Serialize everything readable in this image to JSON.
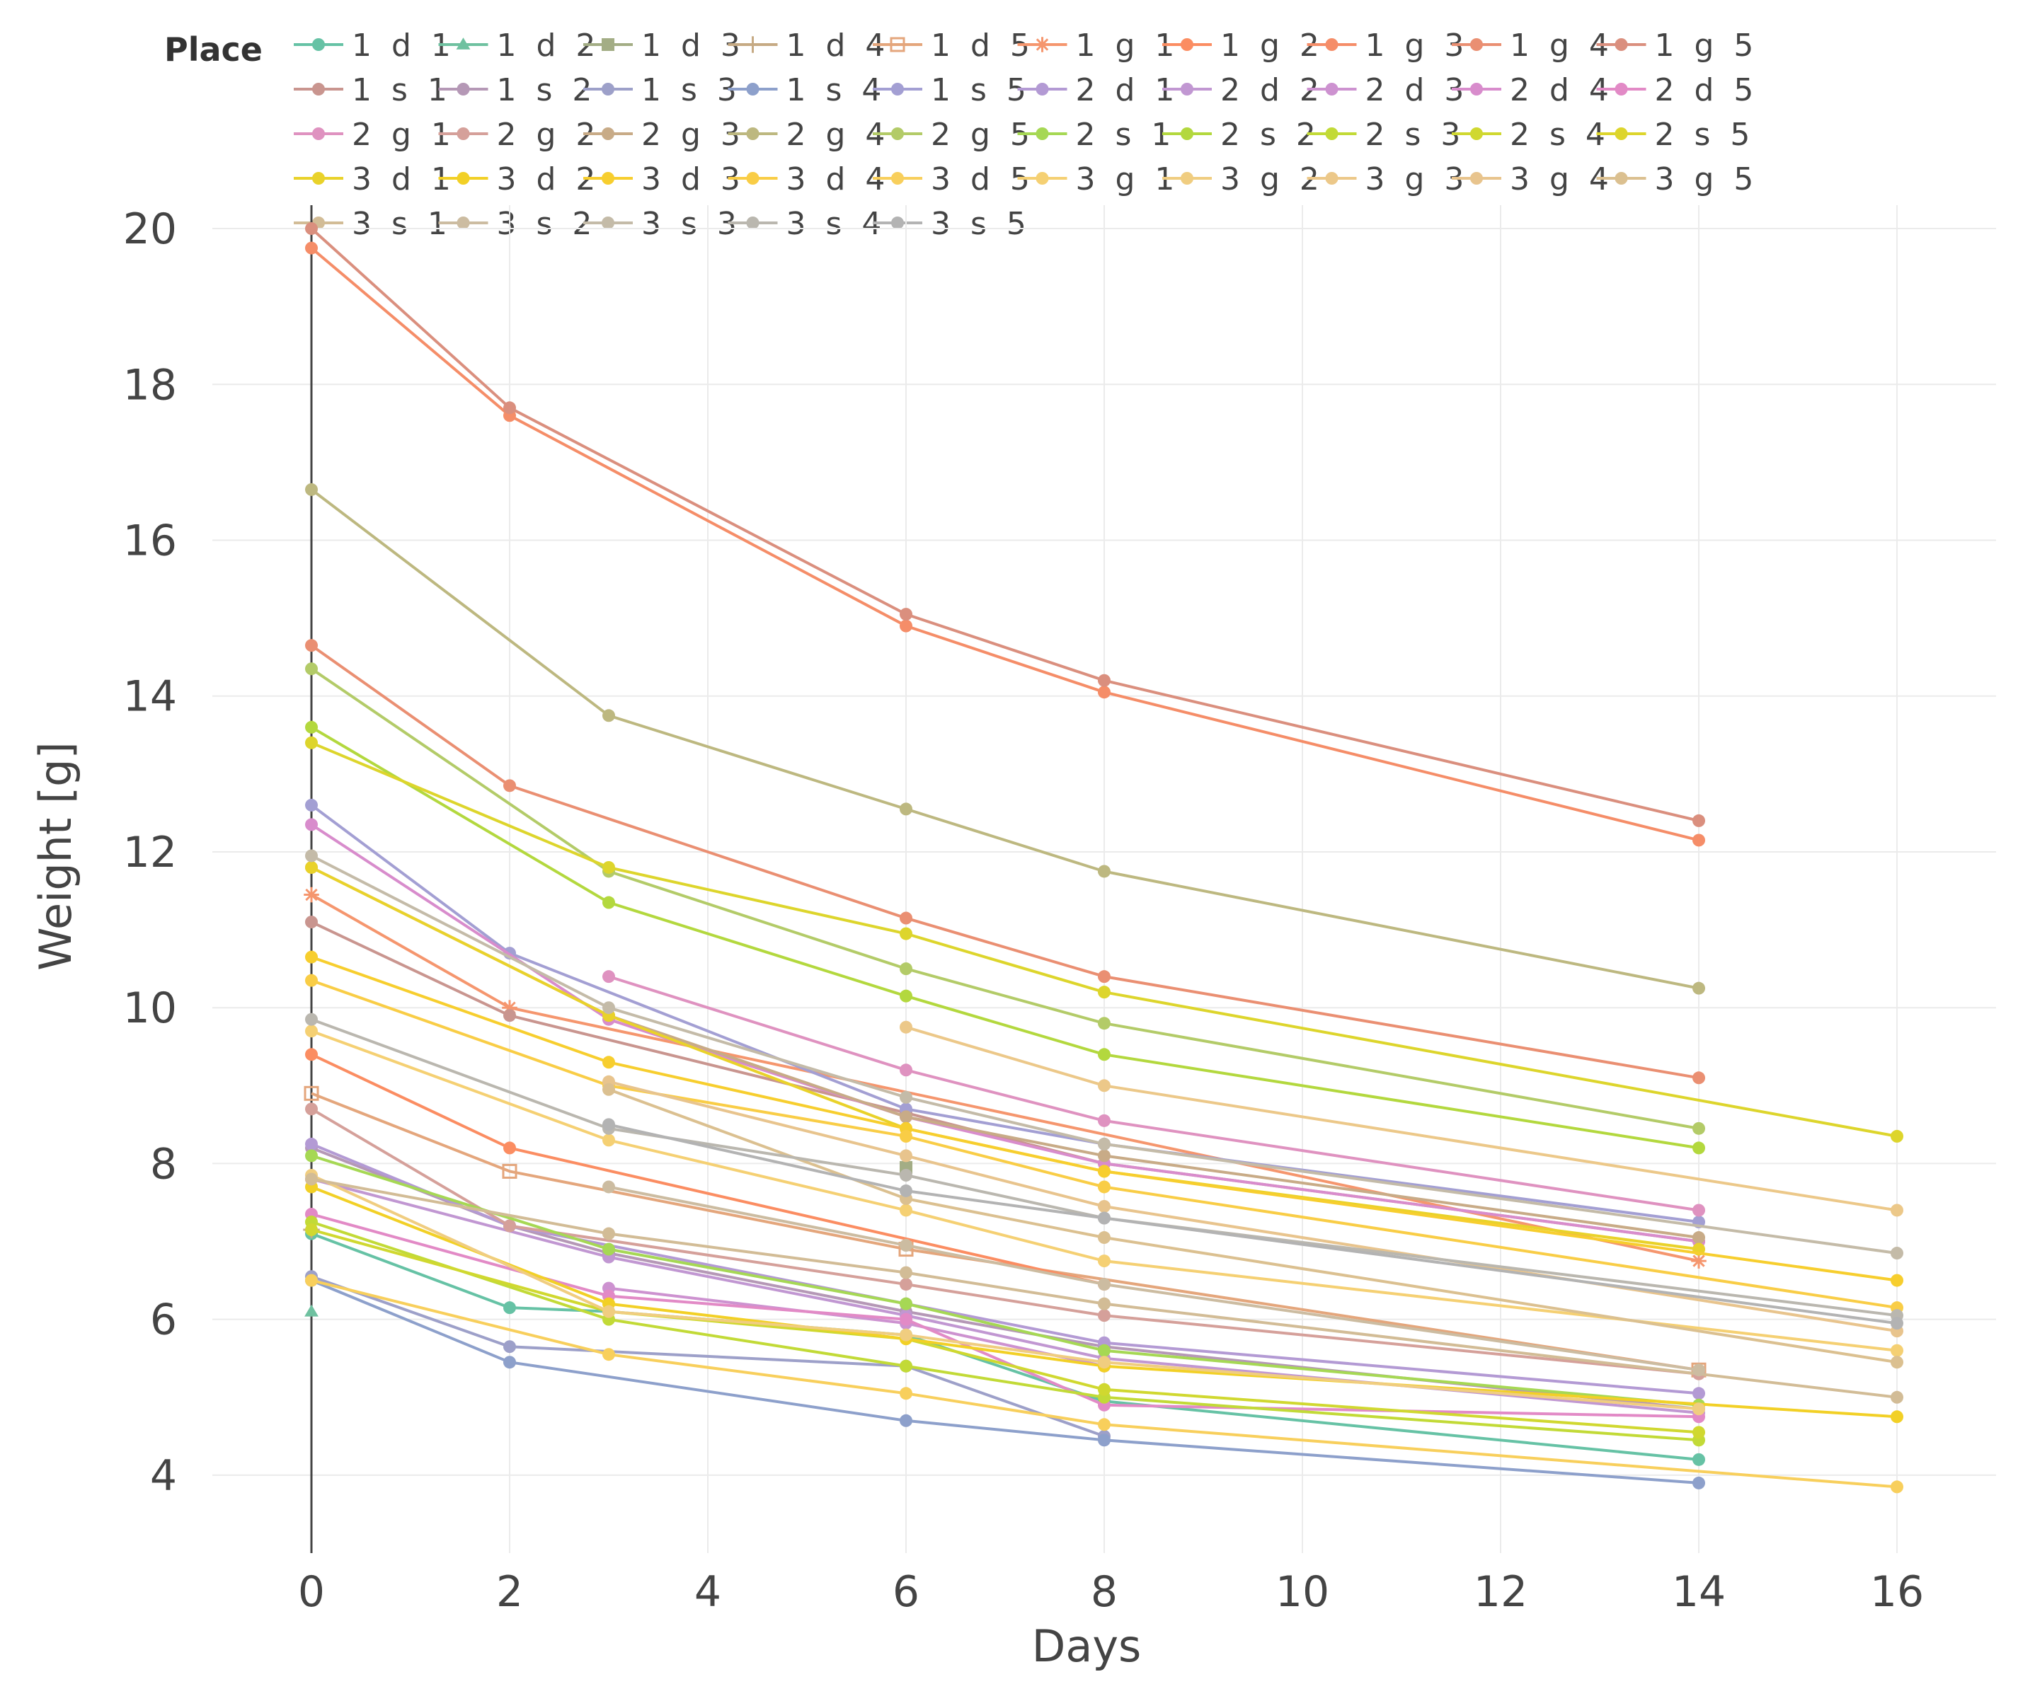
{
  "chart_data": {
    "type": "line",
    "xlabel": "Days",
    "ylabel": "Weight [g]",
    "xlim": [
      -1,
      17
    ],
    "ylim": [
      3,
      20.3
    ],
    "x_ticks": [
      0,
      2,
      4,
      6,
      8,
      10,
      12,
      14,
      16
    ],
    "y_ticks": [
      4,
      6,
      8,
      10,
      12,
      14,
      16,
      18,
      20
    ],
    "x_tick_labels": [
      "0",
      "2",
      "4",
      "6",
      "8",
      "10",
      "12",
      "14",
      "16"
    ],
    "y_tick_labels": [
      "4",
      "6",
      "8",
      "10",
      "12",
      "14",
      "16",
      "18",
      "20"
    ],
    "grid": true,
    "legend_title": "Place",
    "legend_position": "top",
    "series": [
      {
        "name": "1 d 1",
        "color": "#66c2a5",
        "marker": "circle",
        "points": [
          [
            0,
            7.1
          ],
          [
            2,
            6.15
          ],
          [
            3,
            6.1
          ],
          [
            6,
            5.8
          ],
          [
            8,
            4.95
          ],
          [
            14,
            4.2
          ]
        ]
      },
      {
        "name": "1 d 2",
        "color": "#6fc1a0",
        "marker": "triangle",
        "points": [
          [
            0,
            6.1
          ]
        ]
      },
      {
        "name": "1 d 3",
        "color": "#a3ad85",
        "marker": "square",
        "points": [
          [
            6,
            7.95
          ]
        ]
      },
      {
        "name": "1 d 4",
        "color": "#c6aa84",
        "marker": "cross",
        "points": [
          [
            0,
            7.15
          ]
        ]
      },
      {
        "name": "1 d 5",
        "color": "#e4a67c",
        "marker": "square-open",
        "points": [
          [
            0,
            8.9
          ],
          [
            2,
            7.9
          ],
          [
            6,
            6.9
          ],
          [
            14,
            5.35
          ]
        ]
      },
      {
        "name": "1 g 1",
        "color": "#f5966e",
        "marker": "asterisk",
        "points": [
          [
            0,
            11.45
          ],
          [
            2,
            10.0
          ],
          [
            14,
            6.75
          ]
        ]
      },
      {
        "name": "1 g 2",
        "color": "#fb8d62",
        "marker": "circle",
        "points": [
          [
            0,
            9.4
          ],
          [
            2,
            8.2
          ],
          [
            8,
            6.45
          ]
        ]
      },
      {
        "name": "1 g 3",
        "color": "#f58d68",
        "marker": "circle",
        "points": [
          [
            0,
            19.75
          ],
          [
            2,
            17.6
          ],
          [
            6,
            14.9
          ],
          [
            8,
            14.05
          ],
          [
            14,
            12.15
          ]
        ]
      },
      {
        "name": "1 g 4",
        "color": "#ea8f72",
        "marker": "circle",
        "points": [
          [
            0,
            14.65
          ],
          [
            2,
            12.85
          ],
          [
            6,
            11.15
          ],
          [
            8,
            10.4
          ],
          [
            14,
            9.1
          ]
        ]
      },
      {
        "name": "1 g 5",
        "color": "#da8f7e",
        "marker": "circle",
        "points": [
          [
            0,
            20.0
          ],
          [
            2,
            17.7
          ],
          [
            6,
            15.05
          ],
          [
            8,
            14.2
          ],
          [
            14,
            12.4
          ]
        ]
      },
      {
        "name": "1 s 1",
        "color": "#c9958f",
        "marker": "circle",
        "points": [
          [
            0,
            11.1
          ],
          [
            2,
            9.9
          ],
          [
            6,
            8.65
          ],
          [
            8,
            8.0
          ],
          [
            14,
            7.0
          ]
        ]
      },
      {
        "name": "1 s 2",
        "color": "#b598b6",
        "marker": "circle",
        "points": [
          [
            0,
            8.2
          ],
          [
            2,
            7.2
          ],
          [
            3,
            6.85
          ],
          [
            6,
            6.1
          ],
          [
            8,
            5.65
          ],
          [
            14,
            4.85
          ]
        ]
      },
      {
        "name": "1 s 3",
        "color": "#9da0c9",
        "marker": "circle",
        "points": [
          [
            0,
            6.55
          ],
          [
            2,
            5.65
          ],
          [
            6,
            5.4
          ],
          [
            8,
            4.5
          ]
        ]
      },
      {
        "name": "1 s 4",
        "color": "#8da0cb",
        "marker": "circle",
        "points": [
          [
            0,
            6.5
          ],
          [
            2,
            5.45
          ],
          [
            6,
            4.7
          ],
          [
            8,
            4.45
          ],
          [
            14,
            3.9
          ]
        ]
      },
      {
        "name": "1 s 5",
        "color": "#a39fd3",
        "marker": "circle",
        "points": [
          [
            0,
            12.6
          ],
          [
            2,
            10.7
          ],
          [
            6,
            8.7
          ],
          [
            8,
            8.25
          ],
          [
            14,
            7.25
          ]
        ]
      },
      {
        "name": "2 d 1",
        "color": "#b39ad4",
        "marker": "circle",
        "points": [
          [
            0,
            8.25
          ],
          [
            2,
            7.2
          ],
          [
            6,
            6.2
          ],
          [
            8,
            5.7
          ],
          [
            14,
            5.05
          ]
        ]
      },
      {
        "name": "2 d 2",
        "color": "#c197d2",
        "marker": "circle",
        "points": [
          [
            0,
            7.8
          ],
          [
            3,
            6.8
          ],
          [
            6,
            6.05
          ],
          [
            8,
            5.5
          ],
          [
            14,
            4.8
          ]
        ]
      },
      {
        "name": "2 d 3",
        "color": "#cd92d0",
        "marker": "circle",
        "points": [
          [
            3,
            6.4
          ],
          [
            6,
            5.95
          ],
          [
            8,
            5.4
          ]
        ]
      },
      {
        "name": "2 d 4",
        "color": "#d88ccc",
        "marker": "circle",
        "points": [
          [
            0,
            12.35
          ],
          [
            3,
            9.85
          ],
          [
            6,
            8.6
          ],
          [
            8,
            8.0
          ],
          [
            14,
            7.0
          ]
        ]
      },
      {
        "name": "2 d 5",
        "color": "#e28ac6",
        "marker": "circle",
        "points": [
          [
            0,
            7.35
          ],
          [
            3,
            6.3
          ],
          [
            6,
            6.0
          ],
          [
            8,
            4.9
          ],
          [
            14,
            4.75
          ]
        ]
      },
      {
        "name": "2 g 1",
        "color": "#df92c0",
        "marker": "circle",
        "points": [
          [
            3,
            10.4
          ],
          [
            6,
            9.2
          ],
          [
            8,
            8.55
          ],
          [
            14,
            7.4
          ]
        ]
      },
      {
        "name": "2 g 2",
        "color": "#d5a09a",
        "marker": "circle",
        "points": [
          [
            0,
            8.7
          ],
          [
            2,
            7.2
          ],
          [
            6,
            6.45
          ],
          [
            8,
            6.05
          ],
          [
            14,
            5.3
          ]
        ]
      },
      {
        "name": "2 g 3",
        "color": "#c8ab87",
        "marker": "circle",
        "points": [
          [
            0,
            11.8
          ],
          [
            3,
            9.9
          ],
          [
            6,
            8.6
          ],
          [
            8,
            8.1
          ],
          [
            14,
            7.05
          ]
        ]
      },
      {
        "name": "2 g 4",
        "color": "#bdb880",
        "marker": "circle",
        "points": [
          [
            0,
            16.65
          ],
          [
            3,
            13.75
          ],
          [
            6,
            12.55
          ],
          [
            8,
            11.75
          ],
          [
            14,
            10.25
          ]
        ]
      },
      {
        "name": "2 g 5",
        "color": "#b3cb68",
        "marker": "circle",
        "points": [
          [
            0,
            14.35
          ],
          [
            3,
            11.75
          ],
          [
            6,
            10.5
          ],
          [
            8,
            9.8
          ],
          [
            14,
            8.45
          ]
        ]
      },
      {
        "name": "2 s 1",
        "color": "#a6d854",
        "marker": "circle",
        "points": [
          [
            0,
            8.1
          ],
          [
            3,
            6.9
          ],
          [
            6,
            6.2
          ],
          [
            8,
            5.6
          ],
          [
            14,
            4.9
          ]
        ]
      },
      {
        "name": "2 s 2",
        "color": "#b3d83e",
        "marker": "circle",
        "points": [
          [
            0,
            13.6
          ],
          [
            3,
            11.35
          ],
          [
            6,
            10.15
          ],
          [
            8,
            9.4
          ],
          [
            14,
            8.2
          ]
        ]
      },
      {
        "name": "2 s 3",
        "color": "#c2da37",
        "marker": "circle",
        "points": [
          [
            0,
            7.25
          ],
          [
            3,
            6.0
          ],
          [
            6,
            5.4
          ],
          [
            8,
            5.0
          ],
          [
            14,
            4.45
          ]
        ]
      },
      {
        "name": "2 s 4",
        "color": "#d0d830",
        "marker": "circle",
        "points": [
          [
            0,
            7.15
          ],
          [
            3,
            6.1
          ],
          [
            6,
            5.75
          ],
          [
            8,
            5.1
          ],
          [
            14,
            4.55
          ]
        ]
      },
      {
        "name": "2 s 5",
        "color": "#ddd52c",
        "marker": "circle",
        "points": [
          [
            0,
            13.4
          ],
          [
            3,
            11.8
          ],
          [
            6,
            10.95
          ],
          [
            8,
            10.2
          ],
          [
            16,
            8.35
          ]
        ]
      },
      {
        "name": "3 d 1",
        "color": "#e9d22a",
        "marker": "circle",
        "points": [
          [
            0,
            11.8
          ],
          [
            3,
            9.9
          ],
          [
            6,
            8.45
          ],
          [
            8,
            7.9
          ],
          [
            14,
            6.9
          ]
        ]
      },
      {
        "name": "3 d 2",
        "color": "#f2d026",
        "marker": "circle",
        "points": [
          [
            0,
            7.7
          ],
          [
            3,
            6.2
          ],
          [
            6,
            5.75
          ],
          [
            8,
            5.4
          ],
          [
            16,
            4.75
          ]
        ]
      },
      {
        "name": "3 d 3",
        "color": "#f7ce2e",
        "marker": "circle",
        "points": [
          [
            0,
            10.65
          ],
          [
            3,
            9.3
          ],
          [
            6,
            8.45
          ],
          [
            8,
            7.9
          ],
          [
            16,
            6.5
          ]
        ]
      },
      {
        "name": "3 d 4",
        "color": "#f9cd46",
        "marker": "circle",
        "points": [
          [
            0,
            10.35
          ],
          [
            3,
            9.0
          ],
          [
            6,
            8.35
          ],
          [
            8,
            7.7
          ],
          [
            16,
            6.15
          ]
        ]
      },
      {
        "name": "3 d 5",
        "color": "#f8cf5c",
        "marker": "circle",
        "points": [
          [
            0,
            6.5
          ],
          [
            3,
            5.55
          ],
          [
            6,
            5.05
          ],
          [
            8,
            4.65
          ],
          [
            16,
            3.85
          ]
        ]
      },
      {
        "name": "3 g 1",
        "color": "#f5d073",
        "marker": "circle",
        "points": [
          [
            0,
            9.7
          ],
          [
            3,
            8.3
          ],
          [
            6,
            7.4
          ],
          [
            8,
            6.75
          ],
          [
            16,
            5.6
          ]
        ]
      },
      {
        "name": "3 g 2",
        "color": "#f0cd80",
        "marker": "circle",
        "points": [
          [
            0,
            7.85
          ],
          [
            3,
            6.1
          ],
          [
            6,
            5.8
          ],
          [
            8,
            5.45
          ],
          [
            14,
            4.85
          ]
        ]
      },
      {
        "name": "3 g 3",
        "color": "#ecc889",
        "marker": "circle",
        "points": [
          [
            6,
            9.75
          ],
          [
            8,
            9.0
          ],
          [
            16,
            7.4
          ]
        ]
      },
      {
        "name": "3 g 4",
        "color": "#e8c48d",
        "marker": "circle",
        "points": [
          [
            3,
            9.05
          ],
          [
            6,
            8.1
          ],
          [
            8,
            7.45
          ],
          [
            16,
            5.85
          ]
        ]
      },
      {
        "name": "3 g 5",
        "color": "#dbc090",
        "marker": "circle",
        "points": [
          [
            3,
            8.95
          ],
          [
            6,
            7.55
          ],
          [
            8,
            7.05
          ],
          [
            16,
            5.45
          ]
        ]
      },
      {
        "name": "3 s 1",
        "color": "#d2bc96",
        "marker": "circle",
        "points": [
          [
            0,
            7.8
          ],
          [
            3,
            7.1
          ],
          [
            6,
            6.6
          ],
          [
            8,
            6.2
          ],
          [
            16,
            5.0
          ]
        ]
      },
      {
        "name": "3 s 2",
        "color": "#ccbca1",
        "marker": "circle",
        "points": [
          [
            3,
            7.7
          ],
          [
            6,
            6.95
          ],
          [
            8,
            6.45
          ],
          [
            14,
            5.35
          ]
        ]
      },
      {
        "name": "3 s 3",
        "color": "#c4bba8",
        "marker": "circle",
        "points": [
          [
            0,
            11.95
          ],
          [
            3,
            10.0
          ],
          [
            6,
            8.85
          ],
          [
            8,
            8.25
          ],
          [
            16,
            6.85
          ]
        ]
      },
      {
        "name": "3 s 4",
        "color": "#bab7af",
        "marker": "circle",
        "points": [
          [
            0,
            9.85
          ],
          [
            3,
            8.45
          ],
          [
            6,
            7.85
          ],
          [
            8,
            7.3
          ],
          [
            16,
            6.05
          ]
        ]
      },
      {
        "name": "3 s 5",
        "color": "#b3b3b3",
        "marker": "circle",
        "points": [
          [
            3,
            8.5
          ],
          [
            6,
            7.65
          ],
          [
            8,
            7.3
          ],
          [
            16,
            5.95
          ]
        ]
      }
    ]
  }
}
